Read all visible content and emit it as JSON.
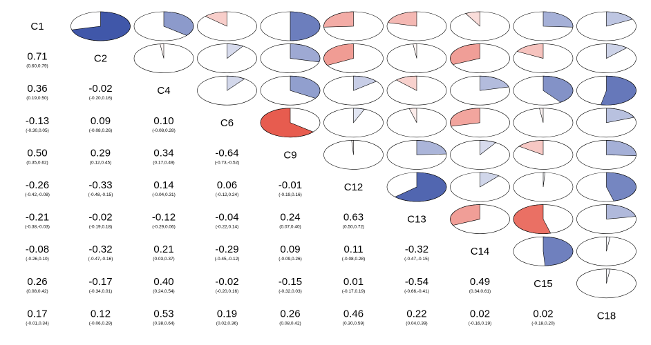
{
  "chart_data": {
    "type": "heatmap",
    "variables": [
      "C1",
      "C2",
      "C4",
      "C6",
      "C9",
      "C12",
      "C13",
      "C14",
      "C15",
      "C18"
    ],
    "lower_panel": "correlation coefficient with 95% confidence interval",
    "upper_panel": "pie; filled fraction = |r|, blue = positive, red = negative",
    "colors": {
      "positive": "#1f3a9a",
      "negative": "#e03020",
      "neutral": "#ffffff"
    },
    "correlations": [
      {
        "row": "C2",
        "col": "C1",
        "r": 0.71,
        "r_label": "0.71",
        "ci": "(0.60,0.79)"
      },
      {
        "row": "C4",
        "col": "C1",
        "r": 0.36,
        "r_label": "0.36",
        "ci": "(0.19,0.50)"
      },
      {
        "row": "C4",
        "col": "C2",
        "r": -0.02,
        "r_label": "-0.02",
        "ci": "(-0.20,0.16)"
      },
      {
        "row": "C6",
        "col": "C1",
        "r": -0.13,
        "r_label": "-0.13",
        "ci": "(-0.30,0.05)"
      },
      {
        "row": "C6",
        "col": "C2",
        "r": 0.09,
        "r_label": "0.09",
        "ci": "(-0.08,0.26)"
      },
      {
        "row": "C6",
        "col": "C4",
        "r": 0.1,
        "r_label": "0.10",
        "ci": "(-0.08,0.28)"
      },
      {
        "row": "C9",
        "col": "C1",
        "r": 0.5,
        "r_label": "0.50",
        "ci": "(0.35,0.62)"
      },
      {
        "row": "C9",
        "col": "C2",
        "r": 0.29,
        "r_label": "0.29",
        "ci": "(0.12,0.45)"
      },
      {
        "row": "C9",
        "col": "C4",
        "r": 0.34,
        "r_label": "0.34",
        "ci": "(0.17,0.49)"
      },
      {
        "row": "C9",
        "col": "C6",
        "r": -0.64,
        "r_label": "-0.64",
        "ci": "(-0.73,-0.52)"
      },
      {
        "row": "C12",
        "col": "C1",
        "r": -0.26,
        "r_label": "-0.26",
        "ci": "(-0.42,-0.08)"
      },
      {
        "row": "C12",
        "col": "C2",
        "r": -0.33,
        "r_label": "-0.33",
        "ci": "(-0.48,-0.15)"
      },
      {
        "row": "C12",
        "col": "C4",
        "r": 0.14,
        "r_label": "0.14",
        "ci": "(-0.04,0.31)"
      },
      {
        "row": "C12",
        "col": "C6",
        "r": 0.06,
        "r_label": "0.06",
        "ci": "(-0.12,0.24)"
      },
      {
        "row": "C12",
        "col": "C9",
        "r": -0.01,
        "r_label": "-0.01",
        "ci": "(-0.19,0.16)"
      },
      {
        "row": "C13",
        "col": "C1",
        "r": -0.21,
        "r_label": "-0.21",
        "ci": "(-0.38,-0.03)"
      },
      {
        "row": "C13",
        "col": "C2",
        "r": -0.02,
        "r_label": "-0.02",
        "ci": "(-0.19,0.18)"
      },
      {
        "row": "C13",
        "col": "C4",
        "r": -0.12,
        "r_label": "-0.12",
        "ci": "(-0.29,0.06)"
      },
      {
        "row": "C13",
        "col": "C6",
        "r": -0.04,
        "r_label": "-0.04",
        "ci": "(-0.22,0.14)"
      },
      {
        "row": "C13",
        "col": "C9",
        "r": 0.24,
        "r_label": "0.24",
        "ci": "(0.07,0.40)"
      },
      {
        "row": "C13",
        "col": "C12",
        "r": 0.63,
        "r_label": "0.63",
        "ci": "(0.50,0.72)"
      },
      {
        "row": "C14",
        "col": "C1",
        "r": -0.08,
        "r_label": "-0.08",
        "ci": "(-0.26,0.10)"
      },
      {
        "row": "C14",
        "col": "C2",
        "r": -0.32,
        "r_label": "-0.32",
        "ci": "(-0.47,-0.16)"
      },
      {
        "row": "C14",
        "col": "C4",
        "r": 0.21,
        "r_label": "0.21",
        "ci": "(0.03,0.37)"
      },
      {
        "row": "C14",
        "col": "C6",
        "r": -0.29,
        "r_label": "-0.29",
        "ci": "(-0.45,-0.12)"
      },
      {
        "row": "C14",
        "col": "C9",
        "r": 0.09,
        "r_label": "0.09",
        "ci": "(-0.09,0.26)"
      },
      {
        "row": "C14",
        "col": "C12",
        "r": 0.11,
        "r_label": "0.11",
        "ci": "(-0.08,0.28)"
      },
      {
        "row": "C14",
        "col": "C13",
        "r": -0.32,
        "r_label": "-0.32",
        "ci": "(-0.47,-0.15)"
      },
      {
        "row": "C15",
        "col": "C1",
        "r": 0.26,
        "r_label": "0.26",
        "ci": "(0.08,0.42)"
      },
      {
        "row": "C15",
        "col": "C2",
        "r": -0.17,
        "r_label": "-0.17",
        "ci": "(-0.34,0.01)"
      },
      {
        "row": "C15",
        "col": "C4",
        "r": 0.4,
        "r_label": "0.40",
        "ci": "(0.24,0.54)"
      },
      {
        "row": "C15",
        "col": "C6",
        "r": -0.02,
        "r_label": "-0.02",
        "ci": "(-0.20,0.16)"
      },
      {
        "row": "C15",
        "col": "C9",
        "r": -0.15,
        "r_label": "-0.15",
        "ci": "(-0.32,0.03)"
      },
      {
        "row": "C15",
        "col": "C12",
        "r": 0.01,
        "r_label": "0.01",
        "ci": "(-0.17,0.19)"
      },
      {
        "row": "C15",
        "col": "C13",
        "r": -0.54,
        "r_label": "-0.54",
        "ci": "(-0.66,-0.41)"
      },
      {
        "row": "C15",
        "col": "C14",
        "r": 0.49,
        "r_label": "0.49",
        "ci": "(0.34,0.61)"
      },
      {
        "row": "C18",
        "col": "C1",
        "r": 0.17,
        "r_label": "0.17",
        "ci": "(-0.01,0.34)"
      },
      {
        "row": "C18",
        "col": "C2",
        "r": 0.12,
        "r_label": "0.12",
        "ci": "(-0.06,0.29)"
      },
      {
        "row": "C18",
        "col": "C4",
        "r": 0.53,
        "r_label": "0.53",
        "ci": "(0.38,0.64)"
      },
      {
        "row": "C18",
        "col": "C6",
        "r": 0.19,
        "r_label": "0.19",
        "ci": "(0.02,0.36)"
      },
      {
        "row": "C18",
        "col": "C9",
        "r": 0.26,
        "r_label": "0.26",
        "ci": "(0.08,0.42)"
      },
      {
        "row": "C18",
        "col": "C12",
        "r": 0.46,
        "r_label": "0.46",
        "ci": "(0.30,0.59)"
      },
      {
        "row": "C18",
        "col": "C13",
        "r": 0.22,
        "r_label": "0.22",
        "ci": "(0.04,0.39)"
      },
      {
        "row": "C18",
        "col": "C14",
        "r": 0.02,
        "r_label": "0.02",
        "ci": "(-0.16,0.19)"
      },
      {
        "row": "C18",
        "col": "C15",
        "r": 0.02,
        "r_label": "0.02",
        "ci": "(-0.18,0.20)"
      }
    ]
  }
}
